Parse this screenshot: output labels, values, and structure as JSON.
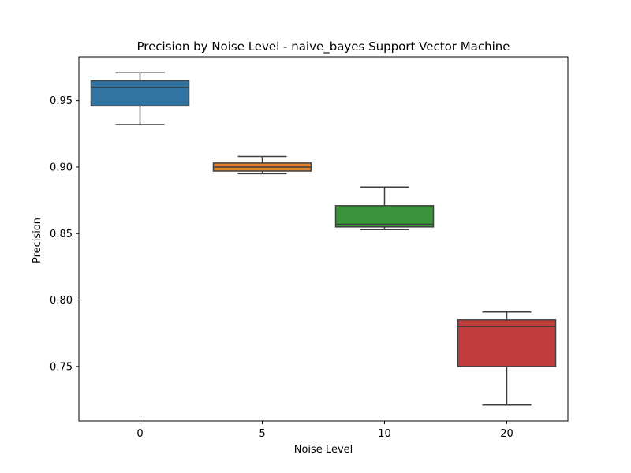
{
  "chart_data": {
    "type": "box",
    "title": "Precision by Noise Level - naive_bayes Support Vector Machine",
    "xlabel": "Noise Level",
    "ylabel": "Precision",
    "categories": [
      "0",
      "5",
      "10",
      "20"
    ],
    "ylim": [
      0.709,
      0.983
    ],
    "yticks": [
      0.75,
      0.8,
      0.85,
      0.9,
      0.95
    ],
    "ytick_labels": [
      "0.75",
      "0.80",
      "0.85",
      "0.90",
      "0.95"
    ],
    "grid": false,
    "boxes": [
      {
        "category": "0",
        "color": "#3274a1",
        "whisker_low": 0.932,
        "q1": 0.946,
        "median": 0.96,
        "q3": 0.965,
        "whisker_high": 0.971
      },
      {
        "category": "5",
        "color": "#e1812c",
        "whisker_low": 0.895,
        "q1": 0.897,
        "median": 0.9,
        "q3": 0.903,
        "whisker_high": 0.908
      },
      {
        "category": "10",
        "color": "#3a923a",
        "whisker_low": 0.853,
        "q1": 0.855,
        "median": 0.857,
        "q3": 0.871,
        "whisker_high": 0.885
      },
      {
        "category": "20",
        "color": "#c03d3e",
        "whisker_low": 0.721,
        "q1": 0.75,
        "median": 0.78,
        "q3": 0.785,
        "whisker_high": 0.791
      }
    ]
  }
}
